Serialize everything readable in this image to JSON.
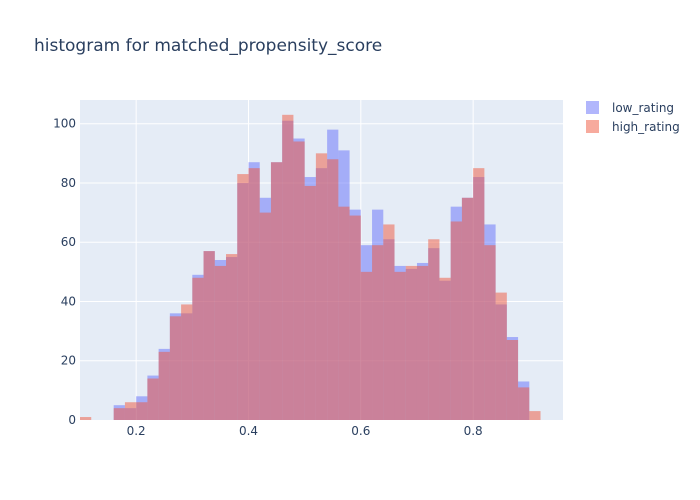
{
  "chart_data": {
    "type": "histogram",
    "title": "histogram for matched_propensity_score",
    "xlabel": "",
    "ylabel": "",
    "barmode": "overlay",
    "xlim": [
      0.1,
      0.96
    ],
    "ylim": [
      0,
      108
    ],
    "bin_start": 0.1,
    "bin_width": 0.02,
    "x_ticks": [
      0.2,
      0.4,
      0.6,
      0.8
    ],
    "x_tick_labels": [
      "0.2",
      "0.4",
      "0.6",
      "0.8"
    ],
    "y_ticks": [
      0,
      20,
      40,
      60,
      80,
      100
    ],
    "y_tick_labels": [
      "0",
      "20",
      "40",
      "60",
      "80",
      "100"
    ],
    "grid": true,
    "plot_background": "#e5ecf6",
    "legend_position": "top-right",
    "series": [
      {
        "name": "low_rating",
        "color": "#636efa",
        "opacity": 0.5,
        "values": [
          0,
          0,
          0,
          5,
          4,
          8,
          15,
          24,
          36,
          36,
          49,
          57,
          54,
          55,
          80,
          87,
          75,
          87,
          101,
          95,
          82,
          85,
          98,
          91,
          71,
          59,
          71,
          61,
          52,
          51,
          53,
          58,
          47,
          72,
          75,
          82,
          66,
          39,
          28,
          13,
          0
        ]
      },
      {
        "name": "high_rating",
        "color": "#ef553b",
        "opacity": 0.5,
        "values": [
          1,
          0,
          0,
          4,
          6,
          6,
          14,
          23,
          35,
          39,
          48,
          57,
          52,
          56,
          83,
          85,
          70,
          87,
          103,
          94,
          79,
          90,
          88,
          72,
          69,
          50,
          59,
          66,
          50,
          52,
          52,
          61,
          48,
          67,
          75,
          85,
          59,
          43,
          27,
          11,
          3
        ]
      }
    ]
  }
}
